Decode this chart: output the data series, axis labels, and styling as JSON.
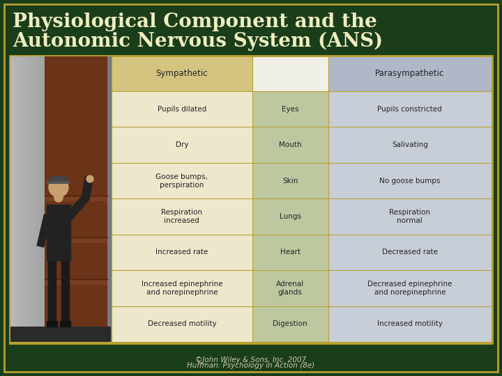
{
  "title_line1": "Physiological Component and the",
  "title_line2": "Autonomic Nervous System (ANS)",
  "title_color": "#EEEEC0",
  "bg_color": "#1A3D1A",
  "border_color": "#B8A030",
  "footer_line1": "©John Wiley & Sons, Inc. 2007",
  "footer_line2": "Huffman: Psychology in Action (8e)",
  "footer_color": "#CCCCAA",
  "header_bg_left": "#D4C480",
  "header_bg_center": "#F0F0E8",
  "header_bg_right": "#B0B8C8",
  "row_bg_sympathetic": "#EDE8CC",
  "row_bg_center": "#BEC8A0",
  "row_bg_parasympathetic": "#C8CED8",
  "col_headers": [
    "Sympathetic",
    "",
    "Parasympathetic"
  ],
  "rows": [
    [
      "Pupils dilated",
      "Eyes",
      "Pupils constricted"
    ],
    [
      "Dry",
      "Mouth",
      "Salivating"
    ],
    [
      "Goose bumps,\nperspiration",
      "Skin",
      "No goose bumps"
    ],
    [
      "Respiration\nincreased",
      "Lungs",
      "Respiration\nnormal"
    ],
    [
      "Increased rate",
      "Heart",
      "Decreased rate"
    ],
    [
      "Increased epinephrine\nand norepinephrine",
      "Adrenal\nglands",
      "Decreased epinephrine\nand norepinephrine"
    ],
    [
      "Decreased motility",
      "Digestion",
      "Increased motility"
    ]
  ],
  "table_font_size": 7.5,
  "header_font_size": 8.5,
  "title_font_size": 20
}
